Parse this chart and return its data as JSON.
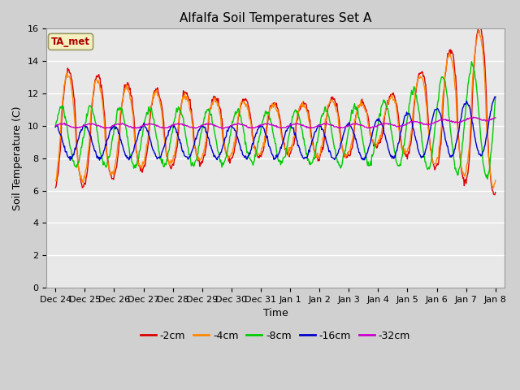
{
  "title": "Alfalfa Soil Temperatures Set A",
  "xlabel": "Time",
  "ylabel": "Soil Temperature (C)",
  "ylim": [
    0,
    16
  ],
  "yticks": [
    0,
    2,
    4,
    6,
    8,
    10,
    12,
    14,
    16
  ],
  "fig_bg_color": "#d0d0d0",
  "plot_bg_color": "#e8e8e8",
  "legend_label": "TA_met",
  "series_colors": {
    "-2cm": "#dd0000",
    "-4cm": "#ff8800",
    "-8cm": "#00cc00",
    "-16cm": "#0000cc",
    "-32cm": "#cc00cc"
  },
  "xticklabels": [
    "Dec 24",
    "Dec 25",
    "Dec 26",
    "Dec 27",
    "Dec 28",
    "Dec 29",
    "Dec 30",
    "Dec 31",
    "Jan 1",
    "Jan 2",
    "Jan 3",
    "Jan 4",
    "Jan 5",
    "Jan 6",
    "Jan 7",
    "Jan 8"
  ]
}
